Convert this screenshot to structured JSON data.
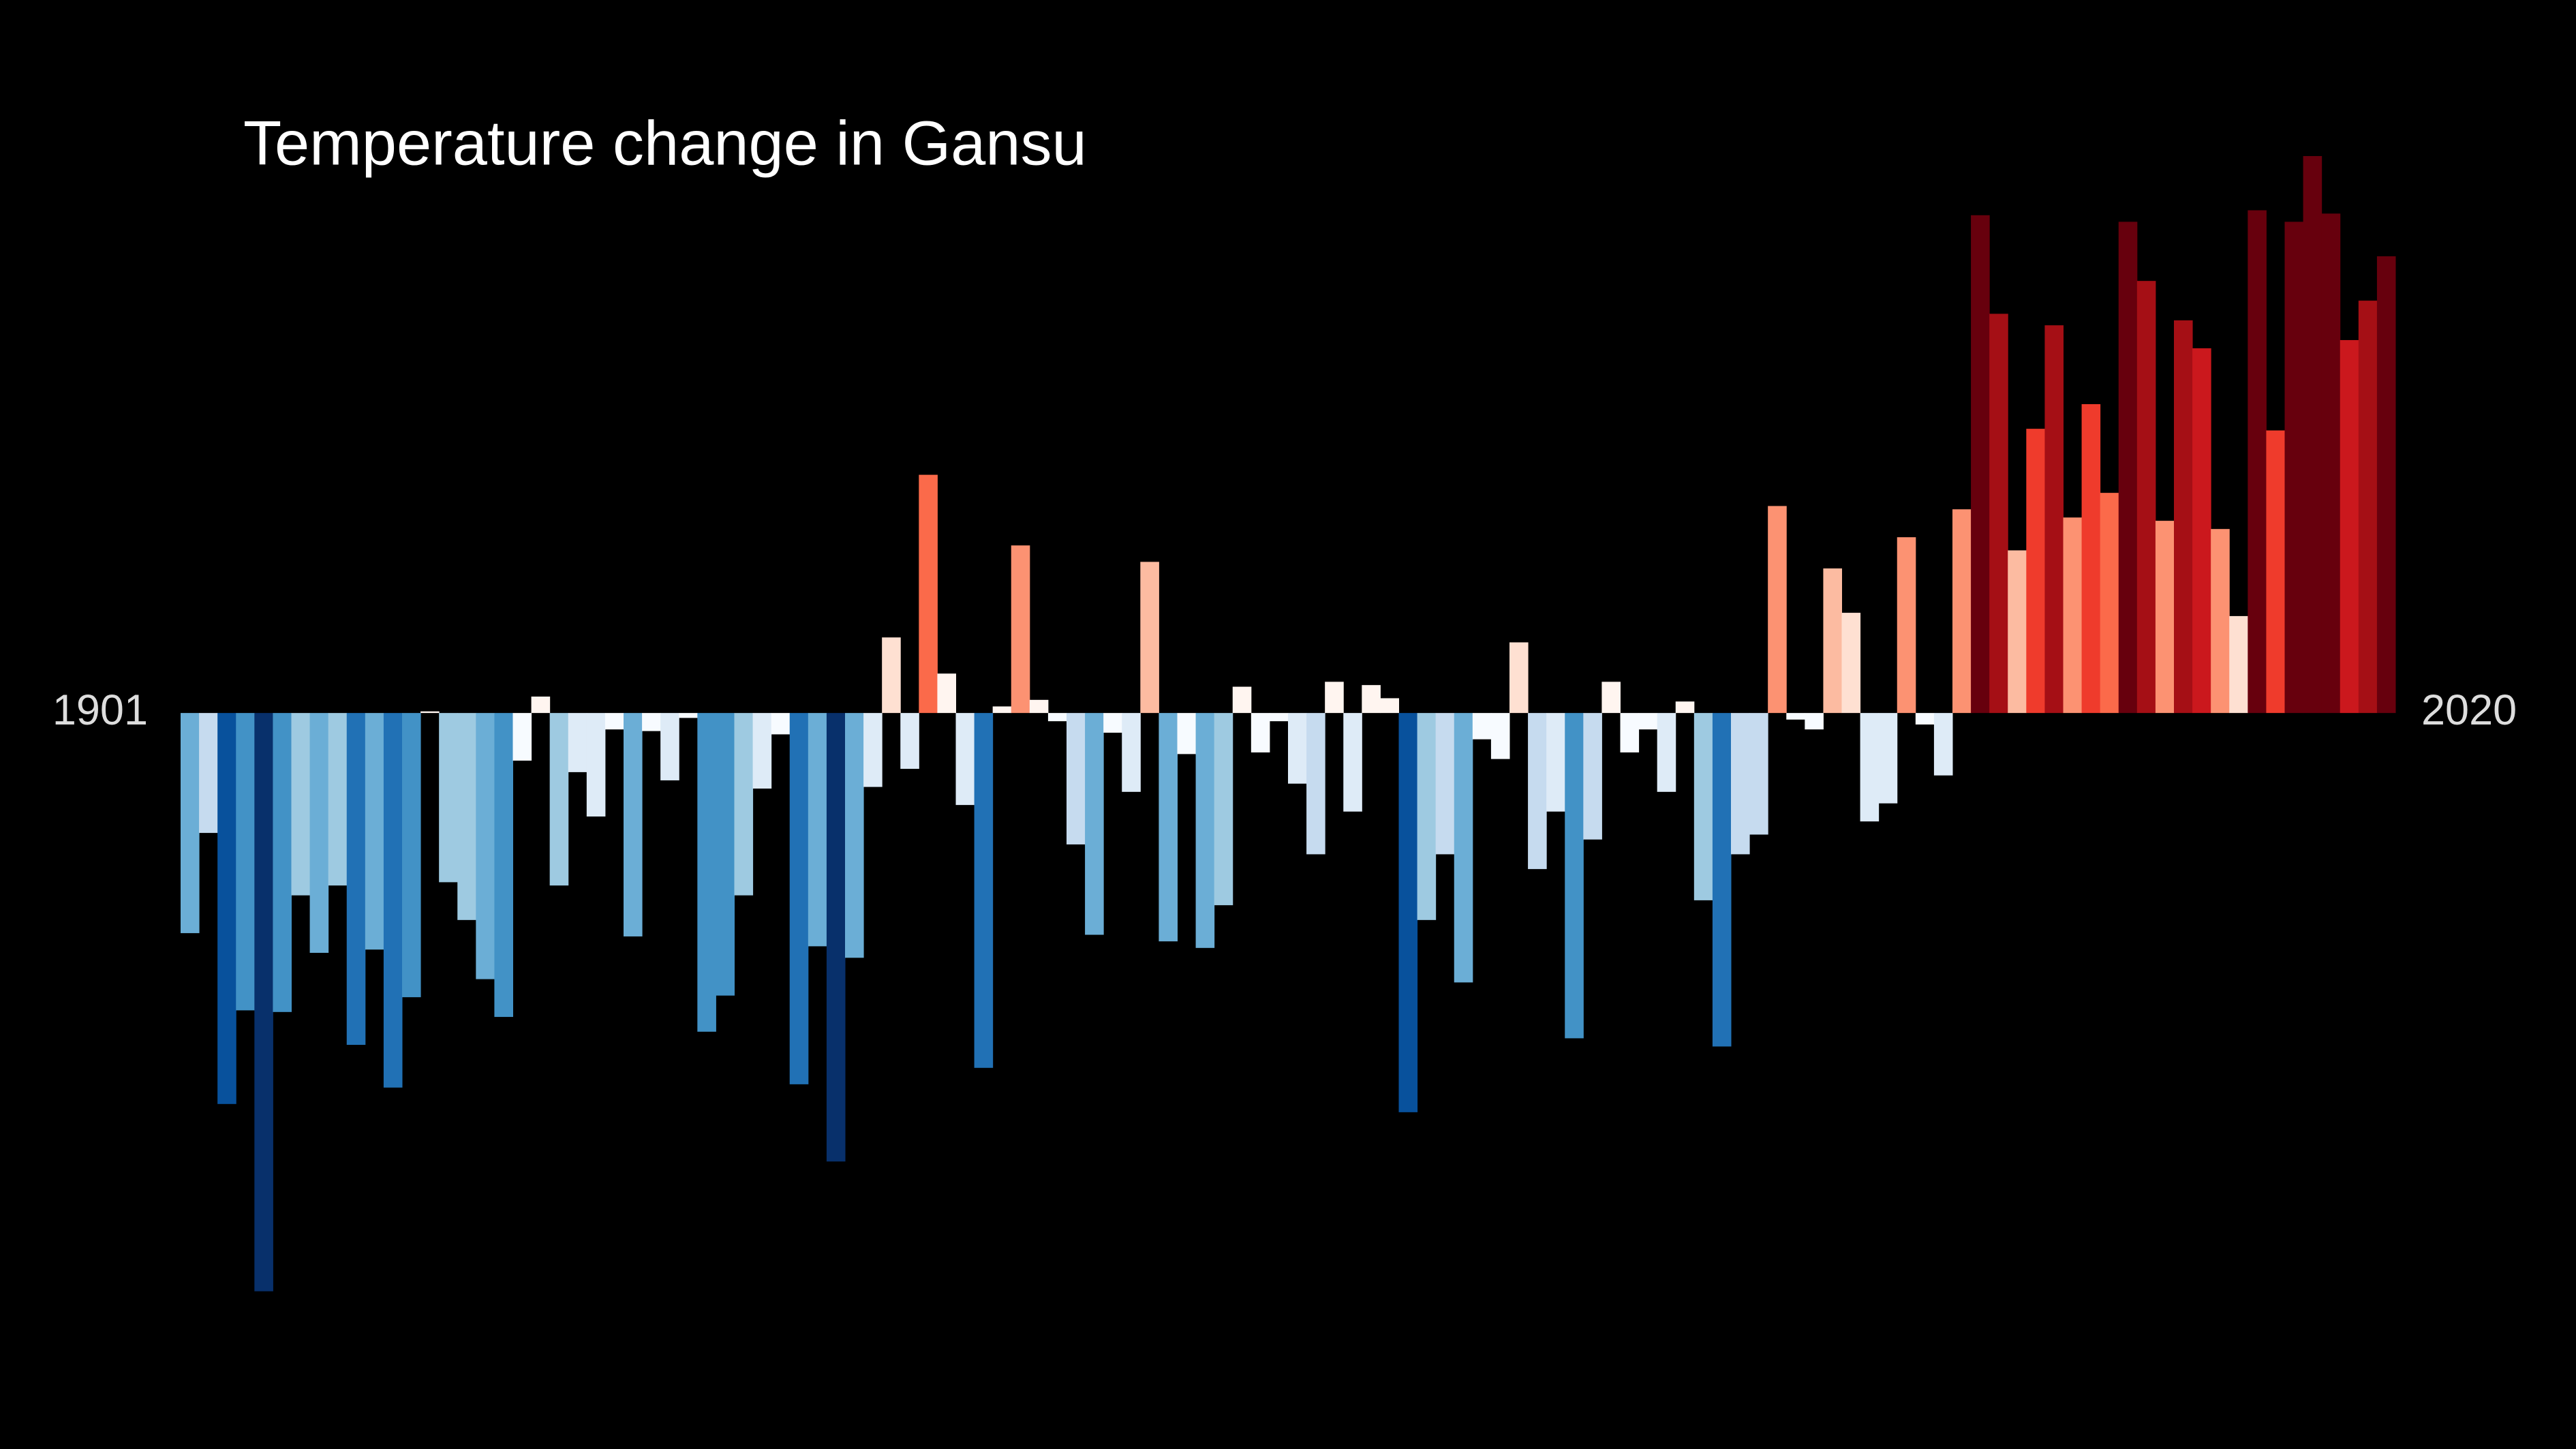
{
  "chart_data": {
    "type": "bar",
    "title": "Temperature change in Gansu",
    "categories": [
      "1901",
      null,
      null,
      null,
      null,
      null,
      null,
      null,
      null,
      null,
      null,
      null,
      null,
      null,
      null,
      null,
      null,
      null,
      null,
      null,
      null,
      null,
      null,
      null,
      null,
      null,
      null,
      null,
      null,
      null,
      null,
      null,
      null,
      null,
      null,
      null,
      null,
      null,
      null,
      null,
      null,
      null,
      null,
      null,
      null,
      null,
      null,
      null,
      null,
      null,
      null,
      null,
      null,
      null,
      null,
      null,
      null,
      null,
      null,
      null,
      null,
      null,
      null,
      null,
      null,
      null,
      null,
      null,
      null,
      null,
      null,
      null,
      null,
      null,
      null,
      null,
      null,
      null,
      null,
      null,
      null,
      null,
      null,
      null,
      null,
      null,
      null,
      null,
      null,
      null,
      null,
      null,
      null,
      null,
      null,
      null,
      null,
      null,
      null,
      null,
      null,
      null,
      null,
      null,
      null,
      null,
      null,
      null,
      null,
      null,
      null,
      null,
      null,
      null,
      null,
      null,
      null,
      null,
      null,
      "2020"
    ],
    "values": [
      -1.34,
      -0.73,
      -2.38,
      -1.81,
      -3.52,
      -1.82,
      -1.11,
      -1.46,
      -1.05,
      -2.02,
      -1.44,
      -2.28,
      -1.73,
      0.01,
      -1.03,
      -1.26,
      -1.62,
      -1.85,
      -0.29,
      0.1,
      -1.05,
      -0.36,
      -0.63,
      -0.1,
      -1.36,
      -0.11,
      -0.41,
      -0.03,
      -1.94,
      -1.72,
      -1.11,
      -0.46,
      -0.13,
      -2.26,
      -1.42,
      -2.73,
      -1.49,
      -0.45,
      0.46,
      -0.34,
      1.45,
      0.24,
      -0.56,
      -2.16,
      0.04,
      1.02,
      0.08,
      -0.05,
      -0.8,
      -1.35,
      -0.12,
      -0.48,
      0.92,
      -1.39,
      -0.25,
      -1.43,
      -1.17,
      0.16,
      -0.24,
      -0.05,
      -0.43,
      -0.86,
      0.19,
      -0.6,
      0.17,
      0.09,
      -2.43,
      -1.26,
      -0.86,
      -1.64,
      -0.16,
      -0.28,
      0.43,
      -0.95,
      -0.6,
      -1.98,
      -0.77,
      0.19,
      -0.24,
      -0.1,
      -0.48,
      0.07,
      -1.14,
      -2.03,
      -0.86,
      -0.74,
      1.26,
      -0.04,
      -0.1,
      0.88,
      0.61,
      -0.66,
      -0.55,
      1.07,
      -0.07,
      -0.38,
      1.24,
      3.03,
      2.43,
      0.99,
      1.73,
      2.36,
      1.19,
      1.88,
      1.34,
      2.99,
      2.63,
      1.17,
      2.39,
      2.22,
      1.12,
      0.59,
      3.06,
      1.72,
      2.99,
      3.39,
      3.04,
      2.27,
      2.51,
      2.78
    ],
    "ylim": [
      -4.48,
      4.34
    ],
    "color_scale": [
      "#08306b",
      "#08519c",
      "#2171b5",
      "#4292c6",
      "#6baed6",
      "#9ecae1",
      "#c6dbef",
      "#deebf7",
      "#f7fbff",
      "#fff5f0",
      "#fee0d2",
      "#fcbba1",
      "#fc9272",
      "#fb6a4a",
      "#ef3b2c",
      "#cb181d",
      "#a50f15",
      "#67000d"
    ],
    "color_limits": [
      -3.0,
      3.0
    ]
  }
}
